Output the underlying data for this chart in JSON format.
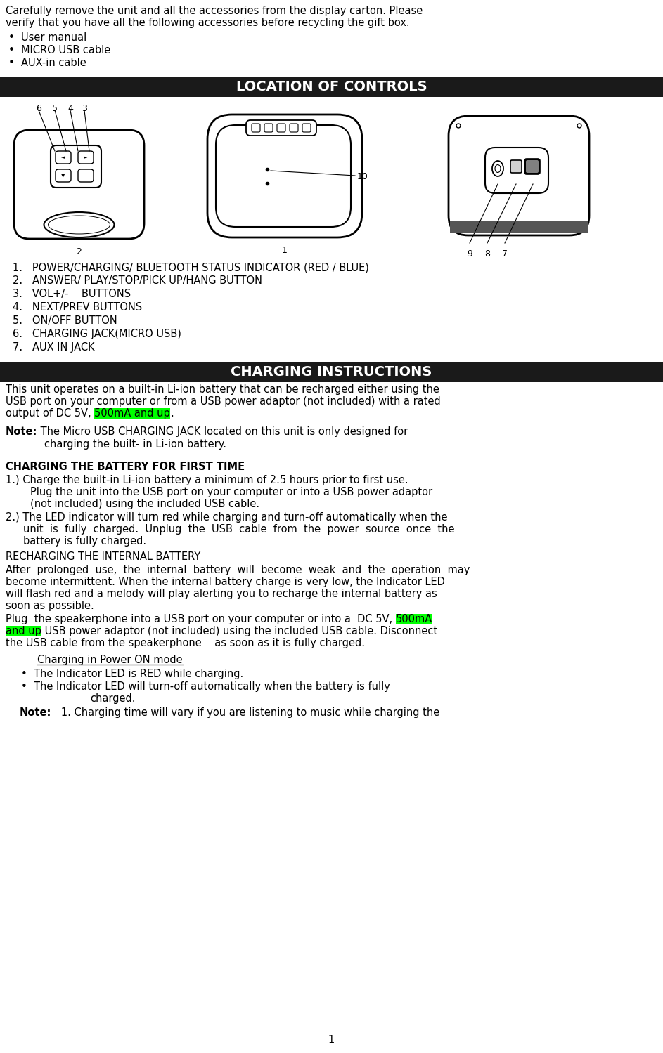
{
  "bg_color": "#ffffff",
  "text_color": "#000000",
  "header_bg": "#1a1a1a",
  "header_text": "#ffffff",
  "highlight_bg": "#00ff00",
  "font_size_body": 10.5,
  "font_size_header": 13,
  "intro_line1": "Carefully remove the unit and all the accessories from the display carton. Please",
  "intro_line2": "verify that you have all the following accessories before recycling the gift box.",
  "bullets": [
    "User manual",
    "MICRO USB cable",
    "AUX-in cable"
  ],
  "loc_header": "LOCATION OF CONTROLS",
  "controls_list": [
    "1.   POWER/CHARGING/ BLUETOOTH STATUS INDICATOR (RED / BLUE)",
    "2.   ANSWER/ PLAY/STOP/PICK UP/HANG BUTTON",
    "3.   VOL+/-    BUTTONS",
    "4.   NEXT/PREV BUTTONS",
    "5.   ON/OFF BUTTON",
    "6.   CHARGING JACK(MICRO USB)",
    "7.   AUX IN JACK"
  ],
  "charging_header": "CHARGING INSTRUCTIONS",
  "ci_line1": "This unit operates on a built-in Li-ion battery that can be recharged either using the",
  "ci_line2": "USB port on your computer or from a USB power adaptor (not included) with a rated",
  "ci_line3a": "output of DC 5V, ",
  "ci_line3b": "500mA and up",
  "ci_line3c": ".",
  "note1_label": "Note:",
  "note1_rest": " The Micro USB CHARGING JACK located on this unit is only designed for",
  "note1_cont": "charging the built- in Li-ion battery.",
  "first_time_header": "CHARGING THE BATTERY FOR FIRST TIME",
  "ft1": "1.) Charge the built-in Li-ion battery a minimum of 2.5 hours prior to first use.",
  "ft1a": "Plug the unit into the USB port on your computer or into a USB power adaptor",
  "ft1b": "(not included) using the included USB cable.",
  "ft2": "2.) The LED indicator will turn red while charging and turn-off automatically when the",
  "ft2a": "unit  is  fully  charged.  Unplug  the  USB  cable  from  the  power  source  once  the",
  "ft2b": "battery is fully charged.",
  "recharge_header": "RECHARGING THE INTERNAL BATTERY",
  "r1": "After  prolonged  use,  the  internal  battery  will  become  weak  and  the  operation  may",
  "r2": "become intermittent. When the internal battery charge is very low, the Indicator LED",
  "r3": "will flash red and a melody will play alerting you to recharge the internal battery as",
  "r4": "soon as possible.",
  "rp1a": "Plug  the speakerphone into a USB port on your computer or into a  DC 5V, ",
  "rp1b": "500mA",
  "rp2a": "and up",
  "rp2b": " USB power adaptor (not included) using the included USB cable. Disconnect",
  "rp3": "the USB cable from the speakerphone    as soon as it is fully charged.",
  "power_on_header": "Charging in Power ON mode",
  "pb1": "The Indicator LED is RED while charging.",
  "pb2a": "The Indicator LED will turn-off automatically when the battery is fully",
  "pb2b": "charged.",
  "note2_label": "Note:",
  "note2_text": "   1. Charging time will vary if you are listening to music while charging the",
  "page_number": "1"
}
